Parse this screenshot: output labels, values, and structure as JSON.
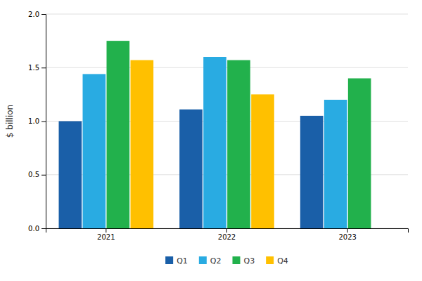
{
  "chart_data": {
    "type": "bar",
    "categories": [
      "2021",
      "2022",
      "2023"
    ],
    "series": [
      {
        "name": "Q1",
        "color": "#1a5fa8",
        "values": [
          1.0,
          1.11,
          1.05
        ]
      },
      {
        "name": "Q2",
        "color": "#29abe2",
        "values": [
          1.44,
          1.6,
          1.2
        ]
      },
      {
        "name": "Q3",
        "color": "#22b14c",
        "values": [
          1.75,
          1.57,
          1.4
        ]
      },
      {
        "name": "Q4",
        "color": "#ffc000",
        "values": [
          1.57,
          1.25,
          null
        ]
      }
    ],
    "ylabel": "$ billion",
    "ylim": [
      0.0,
      2.0
    ],
    "yticks": [
      {
        "value": 0,
        "label": "0.0"
      },
      0.5,
      {
        "value": 1,
        "label": "1.0"
      },
      1.5,
      {
        "value": 2,
        "label": "2.0"
      }
    ],
    "grid": true,
    "legend": "bottom"
  }
}
